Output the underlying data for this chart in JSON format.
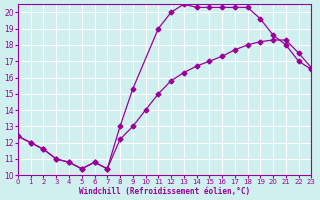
{
  "xlabel": "Windchill (Refroidissement éolien,°C)",
  "ylabel": "",
  "bg_color": "#d0f0f0",
  "line_color": "#990099",
  "xlim": [
    0,
    23
  ],
  "ylim": [
    10,
    20.5
  ],
  "yticks": [
    10,
    11,
    12,
    13,
    14,
    15,
    16,
    17,
    18,
    19,
    20
  ],
  "xticks": [
    0,
    1,
    2,
    3,
    4,
    5,
    6,
    7,
    8,
    9,
    10,
    11,
    12,
    13,
    14,
    15,
    16,
    17,
    18,
    19,
    20,
    21,
    22,
    23
  ],
  "curve1_x": [
    0,
    1,
    2,
    3,
    4,
    5,
    6,
    7,
    8,
    9,
    11,
    12,
    13,
    14,
    15,
    16,
    17,
    18,
    19,
    20,
    21,
    22,
    23
  ],
  "curve1_y": [
    12.4,
    12.0,
    11.6,
    11.0,
    10.8,
    10.4,
    10.8,
    10.4,
    13.0,
    15.3,
    19.0,
    20.0,
    20.5,
    20.3,
    20.3,
    20.3,
    20.3,
    20.3,
    19.6,
    18.6,
    18.0,
    17.0,
    16.5
  ],
  "curve2_x": [
    0,
    1,
    2,
    3,
    4,
    5,
    6,
    7,
    8,
    9,
    10,
    11,
    12,
    13,
    14,
    15,
    16,
    17,
    18,
    19,
    20,
    21,
    22,
    23
  ],
  "curve2_y": [
    12.4,
    12.0,
    11.6,
    11.0,
    10.8,
    10.4,
    10.8,
    10.4,
    12.2,
    13.0,
    14.0,
    15.0,
    15.8,
    16.3,
    16.7,
    17.0,
    17.3,
    17.7,
    18.0,
    18.2,
    18.3,
    18.3,
    17.5,
    16.6
  ]
}
